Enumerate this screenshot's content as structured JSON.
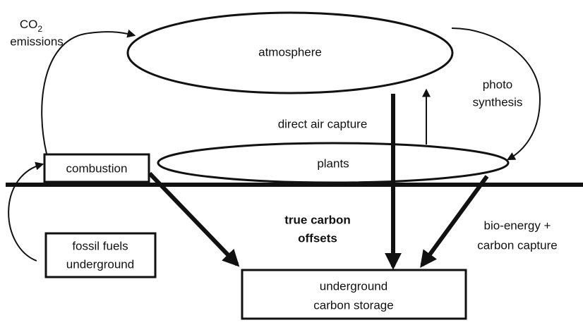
{
  "nodes": [
    {
      "label": "atmosphere"
    },
    {
      "label": "plants"
    },
    {
      "label": "combustion"
    },
    {
      "label": [
        "fossil fuels",
        "underground"
      ]
    },
    {
      "label": [
        "underground",
        "carbon storage"
      ]
    }
  ],
  "edges": [
    {
      "label": {
        "main": "CO",
        "sub": "2",
        "line2": "emissions"
      }
    },
    {
      "label": [
        "photo",
        "synthesis"
      ]
    },
    {
      "label": "direct air capture"
    },
    {
      "label": [
        "bio-energy +",
        "carbon capture"
      ]
    }
  ],
  "center_label": [
    "true carbon",
    "offsets"
  ]
}
